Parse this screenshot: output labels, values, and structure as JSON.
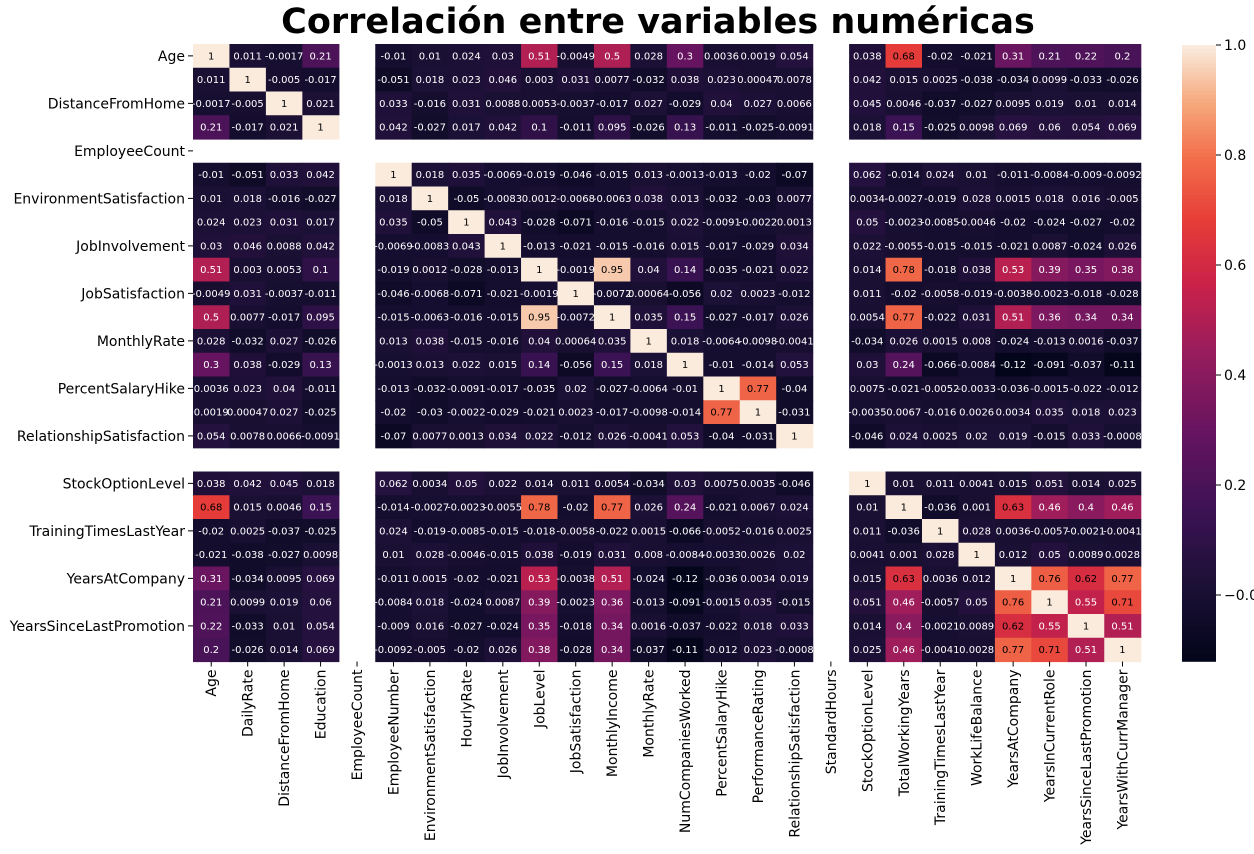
{
  "chart_data": {
    "type": "heatmap",
    "title": "Correlación entre variables numéricas",
    "variables": [
      "Age",
      "DailyRate",
      "DistanceFromHome",
      "Education",
      "EmployeeCount",
      "EmployeeNumber",
      "EnvironmentSatisfaction",
      "HourlyRate",
      "JobInvolvement",
      "JobLevel",
      "JobSatisfaction",
      "MonthlyIncome",
      "MonthlyRate",
      "NumCompaniesWorked",
      "PercentSalaryHike",
      "PerformanceRating",
      "RelationshipSatisfaction",
      "StandardHours",
      "StockOptionLevel",
      "TotalWorkingYears",
      "TrainingTimesLastYear",
      "WorkLifeBalance",
      "YearsAtCompany",
      "YearsInCurrentRole",
      "YearsSinceLastPromotion",
      "YearsWithCurrManager"
    ],
    "y_tick_labels": [
      "Age",
      "DistanceFromHome",
      "EmployeeCount",
      "EnvironmentSatisfaction",
      "JobInvolvement",
      "JobSatisfaction",
      "MonthlyRate",
      "PercentSalaryHike",
      "RelationshipSatisfaction",
      "StockOptionLevel",
      "TrainingTimesLastYear",
      "YearsAtCompany",
      "YearsSinceLastPromotion"
    ],
    "matrix": [
      [
        1,
        0.011,
        -0.0017,
        0.21,
        null,
        -0.01,
        0.01,
        0.024,
        0.03,
        0.51,
        -0.0049,
        0.5,
        0.028,
        0.3,
        0.0036,
        0.0019,
        0.054,
        null,
        0.038,
        0.68,
        -0.02,
        -0.021,
        0.31,
        0.21,
        0.22,
        0.2
      ],
      [
        0.011,
        1,
        -0.005,
        -0.017,
        null,
        -0.051,
        0.018,
        0.023,
        0.046,
        0.003,
        0.031,
        0.0077,
        -0.032,
        0.038,
        0.023,
        0.00047,
        0.0078,
        null,
        0.042,
        0.015,
        0.0025,
        -0.038,
        -0.034,
        0.0099,
        -0.033,
        -0.026
      ],
      [
        -0.0017,
        -0.005,
        1,
        0.021,
        null,
        0.033,
        -0.016,
        0.031,
        0.0088,
        0.0053,
        -0.0037,
        -0.017,
        0.027,
        -0.029,
        0.04,
        0.027,
        0.0066,
        null,
        0.045,
        0.0046,
        -0.037,
        -0.027,
        0.0095,
        0.019,
        0.01,
        0.014
      ],
      [
        0.21,
        -0.017,
        0.021,
        1,
        null,
        0.042,
        -0.027,
        0.017,
        0.042,
        0.1,
        -0.011,
        0.095,
        -0.026,
        0.13,
        -0.011,
        -0.025,
        -0.0091,
        null,
        0.018,
        0.15,
        -0.025,
        0.0098,
        0.069,
        0.06,
        0.054,
        0.069
      ],
      [
        null,
        null,
        null,
        null,
        null,
        null,
        null,
        null,
        null,
        null,
        null,
        null,
        null,
        null,
        null,
        null,
        null,
        null,
        null,
        null,
        null,
        null,
        null,
        null,
        null,
        null
      ],
      [
        -0.01,
        -0.051,
        0.033,
        0.042,
        null,
        1,
        0.018,
        0.035,
        -0.0069,
        -0.019,
        -0.046,
        -0.015,
        0.013,
        -0.0013,
        -0.013,
        -0.02,
        -0.07,
        null,
        0.062,
        -0.014,
        0.024,
        0.01,
        -0.011,
        -0.0084,
        -0.009,
        -0.0092
      ],
      [
        0.01,
        0.018,
        -0.016,
        -0.027,
        null,
        0.018,
        1,
        -0.05,
        -0.0083,
        0.0012,
        -0.0068,
        -0.0063,
        0.038,
        0.013,
        -0.032,
        -0.03,
        0.0077,
        null,
        0.0034,
        -0.0027,
        -0.019,
        0.028,
        0.0015,
        0.018,
        0.016,
        -0.005
      ],
      [
        0.024,
        0.023,
        0.031,
        0.017,
        null,
        0.035,
        -0.05,
        1,
        0.043,
        -0.028,
        -0.071,
        -0.016,
        -0.015,
        0.022,
        -0.0091,
        -0.0022,
        0.0013,
        null,
        0.05,
        -0.0023,
        -0.0085,
        -0.0046,
        -0.02,
        -0.024,
        -0.027,
        -0.02
      ],
      [
        0.03,
        0.046,
        0.0088,
        0.042,
        null,
        -0.0069,
        -0.0083,
        0.043,
        1,
        -0.013,
        -0.021,
        -0.015,
        -0.016,
        0.015,
        -0.017,
        -0.029,
        0.034,
        null,
        0.022,
        -0.0055,
        -0.015,
        -0.015,
        -0.021,
        0.0087,
        -0.024,
        0.026
      ],
      [
        0.51,
        0.003,
        0.0053,
        0.1,
        null,
        -0.019,
        0.0012,
        -0.028,
        -0.013,
        1,
        -0.0019,
        0.95,
        0.04,
        0.14,
        -0.035,
        -0.021,
        0.022,
        null,
        0.014,
        0.78,
        -0.018,
        0.038,
        0.53,
        0.39,
        0.35,
        0.38
      ],
      [
        -0.0049,
        0.031,
        -0.0037,
        -0.011,
        null,
        -0.046,
        -0.0068,
        -0.071,
        -0.021,
        -0.0019,
        1,
        -0.0072,
        0.00064,
        -0.056,
        0.02,
        0.0023,
        -0.012,
        null,
        0.011,
        -0.02,
        -0.0058,
        -0.019,
        -0.0038,
        -0.0023,
        -0.018,
        -0.028
      ],
      [
        0.5,
        0.0077,
        -0.017,
        0.095,
        null,
        -0.015,
        -0.0063,
        -0.016,
        -0.015,
        0.95,
        -0.0072,
        1,
        0.035,
        0.15,
        -0.027,
        -0.017,
        0.026,
        null,
        0.0054,
        0.77,
        -0.022,
        0.031,
        0.51,
        0.36,
        0.34,
        0.34
      ],
      [
        0.028,
        -0.032,
        0.027,
        -0.026,
        null,
        0.013,
        0.038,
        -0.015,
        -0.016,
        0.04,
        0.00064,
        0.035,
        1,
        0.018,
        -0.0064,
        -0.0098,
        -0.0041,
        null,
        -0.034,
        0.026,
        0.0015,
        0.008,
        -0.024,
        -0.013,
        0.0016,
        -0.037
      ],
      [
        0.3,
        0.038,
        -0.029,
        0.13,
        null,
        -0.0013,
        0.013,
        0.022,
        0.015,
        0.14,
        -0.056,
        0.15,
        0.018,
        1,
        -0.01,
        -0.014,
        0.053,
        null,
        0.03,
        0.24,
        -0.066,
        -0.0084,
        -0.12,
        -0.091,
        -0.037,
        -0.11
      ],
      [
        0.0036,
        0.023,
        0.04,
        -0.011,
        null,
        -0.013,
        -0.032,
        -0.0091,
        -0.017,
        -0.035,
        0.02,
        -0.027,
        -0.0064,
        -0.01,
        1,
        0.77,
        -0.04,
        null,
        0.0075,
        -0.021,
        -0.0052,
        -0.0033,
        -0.036,
        -0.0015,
        -0.022,
        -0.012
      ],
      [
        0.0019,
        0.00047,
        0.027,
        -0.025,
        null,
        -0.02,
        -0.03,
        -0.0022,
        -0.029,
        -0.021,
        0.0023,
        -0.017,
        -0.0098,
        -0.014,
        0.77,
        1,
        -0.031,
        null,
        -0.0035,
        0.0067,
        -0.016,
        0.0026,
        0.0034,
        0.035,
        0.018,
        0.023
      ],
      [
        0.054,
        0.0078,
        0.0066,
        -0.0091,
        null,
        -0.07,
        0.0077,
        0.0013,
        0.034,
        0.022,
        -0.012,
        0.026,
        -0.0041,
        0.053,
        -0.04,
        -0.031,
        1,
        null,
        -0.046,
        0.024,
        0.0025,
        0.02,
        0.019,
        -0.015,
        0.033,
        -0.0008
      ],
      [
        null,
        null,
        null,
        null,
        null,
        null,
        null,
        null,
        null,
        null,
        null,
        null,
        null,
        null,
        null,
        null,
        null,
        null,
        null,
        null,
        null,
        null,
        null,
        null,
        null,
        null
      ],
      [
        0.038,
        0.042,
        0.045,
        0.018,
        null,
        0.062,
        0.0034,
        0.05,
        0.022,
        0.014,
        0.011,
        0.0054,
        -0.034,
        0.03,
        0.0075,
        0.0035,
        -0.046,
        null,
        1,
        0.01,
        0.011,
        0.0041,
        0.015,
        0.051,
        0.014,
        0.025
      ],
      [
        0.68,
        0.015,
        0.0046,
        0.15,
        null,
        -0.014,
        -0.0027,
        -0.0023,
        -0.0055,
        0.78,
        -0.02,
        0.77,
        0.026,
        0.24,
        -0.021,
        0.0067,
        0.024,
        null,
        0.01,
        1,
        -0.036,
        0.001,
        0.63,
        0.46,
        0.4,
        0.46
      ],
      [
        -0.02,
        0.0025,
        -0.037,
        -0.025,
        null,
        0.024,
        -0.019,
        -0.0085,
        -0.015,
        -0.018,
        -0.0058,
        -0.022,
        0.0015,
        -0.066,
        -0.0052,
        -0.016,
        0.0025,
        null,
        0.011,
        -0.036,
        1,
        0.028,
        0.0036,
        -0.0057,
        -0.0021,
        -0.0041
      ],
      [
        -0.021,
        -0.038,
        -0.027,
        0.0098,
        null,
        0.01,
        0.028,
        -0.0046,
        -0.015,
        0.038,
        -0.019,
        0.031,
        0.008,
        -0.0084,
        -0.0033,
        0.0026,
        0.02,
        null,
        0.0041,
        0.001,
        0.028,
        1,
        0.012,
        0.05,
        0.0089,
        0.0028
      ],
      [
        0.31,
        -0.034,
        0.0095,
        0.069,
        null,
        -0.011,
        0.0015,
        -0.02,
        -0.021,
        0.53,
        -0.0038,
        0.51,
        -0.024,
        -0.12,
        -0.036,
        0.0034,
        0.019,
        null,
        0.015,
        0.63,
        0.0036,
        0.012,
        1,
        0.76,
        0.62,
        0.77
      ],
      [
        0.21,
        0.0099,
        0.019,
        0.06,
        null,
        -0.0084,
        0.018,
        -0.024,
        0.0087,
        0.39,
        -0.0023,
        0.36,
        -0.013,
        -0.091,
        -0.0015,
        0.035,
        -0.015,
        null,
        0.051,
        0.46,
        -0.0057,
        0.05,
        0.76,
        1,
        0.55,
        0.71
      ],
      [
        0.22,
        -0.033,
        0.01,
        0.054,
        null,
        -0.009,
        0.016,
        -0.027,
        -0.024,
        0.35,
        -0.018,
        0.34,
        0.0016,
        -0.037,
        -0.022,
        0.018,
        0.033,
        null,
        0.014,
        0.4,
        -0.0021,
        0.0089,
        0.62,
        0.55,
        1,
        0.51
      ],
      [
        0.2,
        -0.026,
        0.014,
        0.069,
        null,
        -0.0092,
        -0.005,
        -0.02,
        0.026,
        0.38,
        -0.028,
        0.34,
        -0.037,
        -0.11,
        -0.012,
        0.023,
        -0.0008,
        null,
        0.025,
        0.46,
        -0.0041,
        0.0028,
        0.77,
        0.71,
        0.51,
        1
      ]
    ],
    "colorbar": {
      "min": -0.12,
      "max": 1.0,
      "ticks": [
        -0.0,
        0.2,
        0.4,
        0.6,
        0.8,
        1.0
      ],
      "tick_labels": [
        "−0.0",
        "0.2",
        "0.4",
        "0.6",
        "0.8",
        "1.0"
      ]
    }
  }
}
